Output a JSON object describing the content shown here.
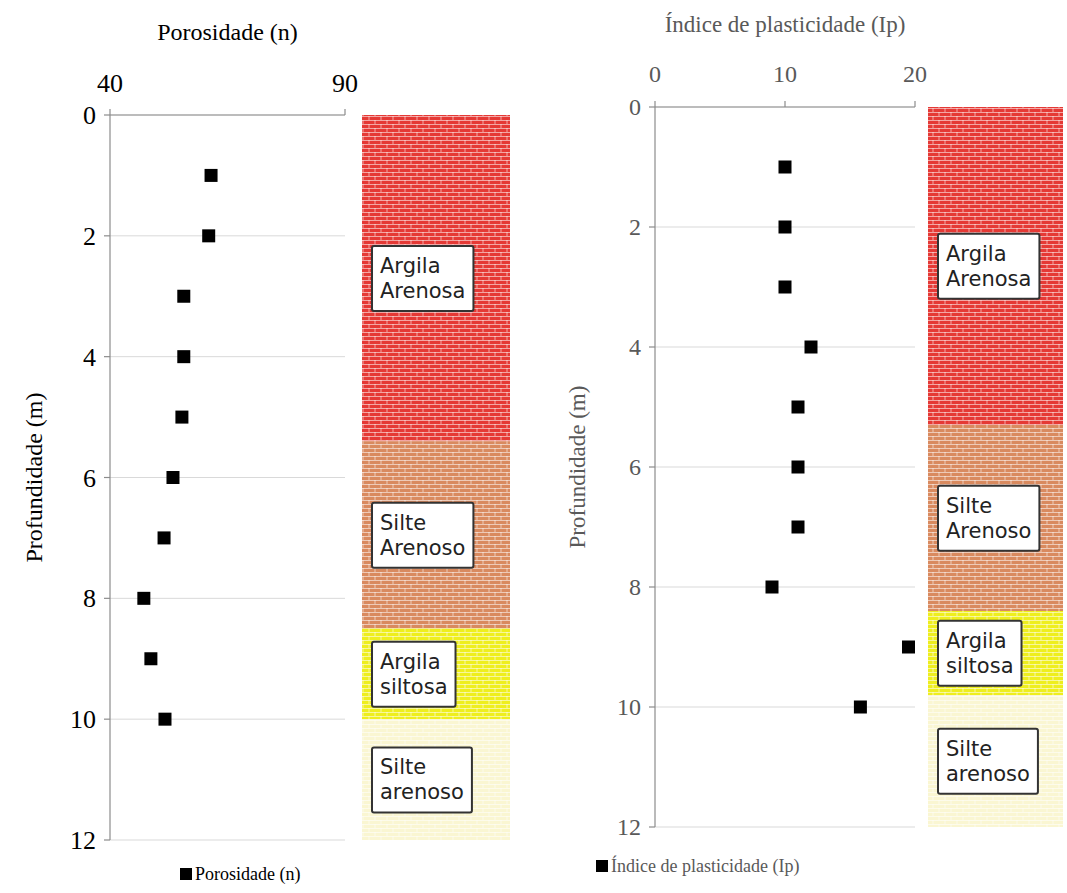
{
  "chart_data": [
    {
      "type": "scatter",
      "xlabel": "Porosidade (n)",
      "ylabel": "Profundidade (m)",
      "xlim": [
        40,
        90
      ],
      "xticks": [
        40,
        90
      ],
      "ylim": [
        0,
        12
      ],
      "yticks": [
        0,
        2,
        4,
        6,
        8,
        10,
        12
      ],
      "grid": true,
      "legend": "bottom",
      "series": [
        {
          "name": "Porosidade (n)",
          "color": "#000000",
          "marker": "square",
          "x": [
            61.5,
            61,
            55.7,
            55.7,
            55.3,
            53.4,
            51.5,
            47.2,
            48.7,
            51.7
          ],
          "y": [
            1,
            2,
            3,
            4,
            5,
            6,
            7,
            8,
            9,
            10
          ]
        }
      ],
      "layers": [
        {
          "label": "Argila Arenosa",
          "top": 0,
          "bottom": 5.4,
          "color": "#e53935"
        },
        {
          "label": "Silte Arenoso",
          "top": 5.4,
          "bottom": 8.5,
          "color": "#d98a5f"
        },
        {
          "label": "Argila siltosa",
          "top": 8.5,
          "bottom": 10,
          "color": "#eeee1e"
        },
        {
          "label": "Silte arenoso",
          "top": 10,
          "bottom": 12,
          "color": "#faf6d2"
        }
      ]
    },
    {
      "type": "scatter",
      "xlabel": "Índice de plasticidade (Ip)",
      "ylabel": "Profundidade (m)",
      "xlim": [
        0,
        20
      ],
      "xticks": [
        0,
        10,
        20
      ],
      "ylim": [
        0,
        12
      ],
      "yticks": [
        0,
        2,
        4,
        6,
        8,
        10,
        12
      ],
      "grid": true,
      "legend": "bottom",
      "series": [
        {
          "name": "Índice de plasticidade (Ip)",
          "color": "#000000",
          "marker": "square",
          "x": [
            10,
            10,
            10,
            12,
            11,
            11,
            11,
            9,
            19.5,
            15.8
          ],
          "y": [
            1,
            2,
            3,
            4,
            5,
            6,
            7,
            8,
            9,
            10
          ]
        }
      ],
      "layers": [
        {
          "label": "Argila Arenosa",
          "top": 0,
          "bottom": 5.3,
          "color": "#e53935"
        },
        {
          "label": "Silte Arenoso",
          "top": 5.3,
          "bottom": 8.4,
          "color": "#d98a5f"
        },
        {
          "label": "Argila siltosa",
          "top": 8.4,
          "bottom": 9.8,
          "color": "#eeee1e"
        },
        {
          "label": "Silte arenoso",
          "top": 9.8,
          "bottom": 12,
          "color": "#faf6d2"
        }
      ]
    }
  ]
}
